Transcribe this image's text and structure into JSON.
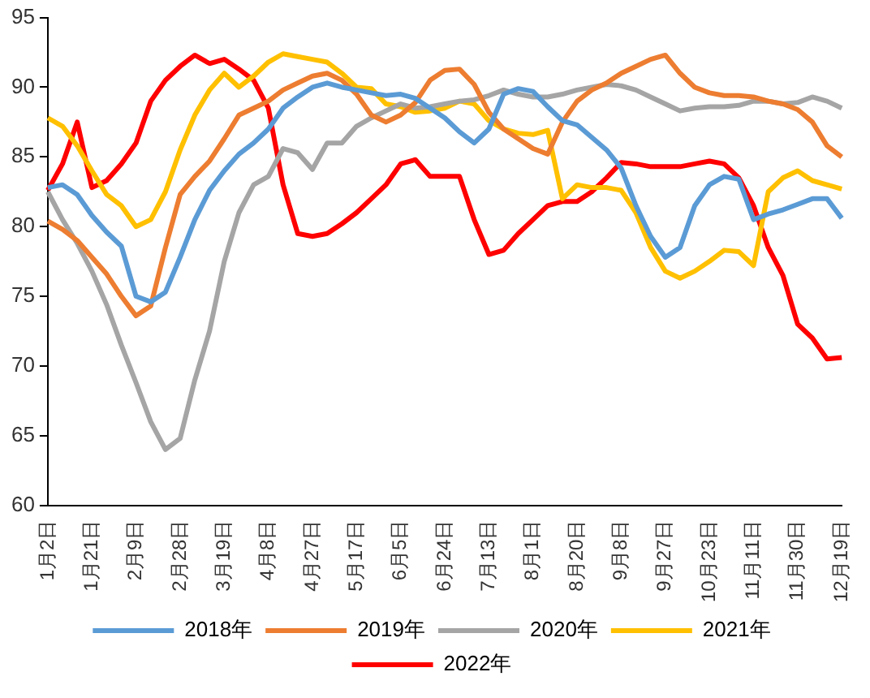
{
  "chart_data": {
    "type": "line",
    "categories": [
      "1月2日",
      null,
      null,
      "1月21日",
      null,
      null,
      "2月9日",
      null,
      null,
      "2月28日",
      null,
      null,
      "3月19日",
      null,
      null,
      "4月8日",
      null,
      null,
      "4月27日",
      null,
      null,
      "5月17日",
      null,
      null,
      "6月5日",
      null,
      null,
      "6月24日",
      null,
      null,
      "7月13日",
      null,
      null,
      "8月1日",
      null,
      null,
      "8月20日",
      null,
      null,
      "9月8日",
      null,
      null,
      "9月27日",
      null,
      null,
      "10月23日",
      null,
      null,
      "11月11日",
      null,
      null,
      "11月30日",
      null,
      null,
      "12月19日"
    ],
    "series": [
      {
        "name": "2018年",
        "color": "#5b9bd5",
        "values": [
          82.8,
          83,
          82.3,
          80.8,
          79.6,
          78.6,
          75,
          74.6,
          75.3,
          77.8,
          80.5,
          82.6,
          84,
          85.2,
          86,
          87,
          88.5,
          89.3,
          90,
          90.3,
          90,
          89.8,
          89.6,
          89.4,
          89.5,
          89.2,
          88.5,
          87.8,
          86.8,
          86,
          87,
          89.5,
          89.9,
          89.7,
          88.6,
          87.6,
          87.3,
          86.4,
          85.5,
          84.2,
          81.5,
          79.3,
          77.8,
          78.5,
          81.5,
          83,
          83.6,
          83.4,
          80.5,
          80.9,
          81.2,
          81.6,
          82,
          82,
          80.6
        ]
      },
      {
        "name": "2019年",
        "color": "#ed7d31",
        "values": [
          80.4,
          79.8,
          79,
          77.8,
          76.6,
          75,
          73.6,
          74.3,
          78.5,
          82.3,
          83.6,
          84.7,
          86.3,
          88,
          88.5,
          89,
          89.8,
          90.3,
          90.8,
          91,
          90.5,
          89.5,
          88,
          87.5,
          88,
          88.9,
          90.5,
          91.2,
          91.3,
          90.2,
          88.2,
          87,
          86.3,
          85.6,
          85.2,
          87.5,
          89,
          89.8,
          90.3,
          91,
          91.5,
          92,
          92.3,
          91,
          90,
          89.6,
          89.4,
          89.4,
          89.3,
          89,
          88.8,
          88.4,
          87.5,
          85.8,
          85
        ]
      },
      {
        "name": "2020年",
        "color": "#a5a5a5",
        "values": [
          82.5,
          80.5,
          78.8,
          76.8,
          74.4,
          71.5,
          68.8,
          66,
          64,
          64.8,
          69,
          72.5,
          77.5,
          81,
          83,
          83.6,
          85.6,
          85.3,
          84.1,
          86,
          86,
          87.2,
          87.8,
          88.3,
          88.8,
          88.5,
          88.6,
          88.8,
          89,
          89.1,
          89.4,
          89.8,
          89.5,
          89.3,
          89.3,
          89.5,
          89.8,
          90,
          90.2,
          90.1,
          89.8,
          89.3,
          88.8,
          88.3,
          88.5,
          88.6,
          88.6,
          88.7,
          89,
          89,
          88.8,
          88.9,
          89.3,
          89,
          88.5
        ]
      },
      {
        "name": "2021年",
        "color": "#ffc000",
        "values": [
          87.8,
          87.2,
          85.8,
          84,
          82.3,
          81.5,
          80,
          80.5,
          82.5,
          85.5,
          88,
          89.8,
          91,
          90,
          90.8,
          91.8,
          92.4,
          92.2,
          92,
          91.8,
          91,
          90,
          89.9,
          88.8,
          88.6,
          88.2,
          88.3,
          88.5,
          89,
          88.8,
          87.6,
          87,
          86.7,
          86.6,
          86.9,
          82,
          83,
          82.8,
          82.8,
          82.6,
          81,
          78.5,
          76.8,
          76.3,
          76.8,
          77.5,
          78.3,
          78.2,
          77.2,
          82.5,
          83.5,
          84,
          83.3,
          83,
          82.7
        ]
      },
      {
        "name": "2022年",
        "color": "#ff0000",
        "values": [
          82.6,
          84.5,
          87.5,
          82.8,
          83.3,
          84.5,
          86,
          89,
          90.5,
          91.5,
          92.3,
          91.7,
          92,
          91.3,
          90.5,
          88.5,
          83,
          79.5,
          79.3,
          79.5,
          80.2,
          81,
          82,
          83,
          84.5,
          84.8,
          83.6,
          83.6,
          83.6,
          80.5,
          78,
          78.3,
          79.5,
          80.5,
          81.5,
          81.8,
          81.8,
          82.5,
          83.5,
          84.6,
          84.5,
          84.3,
          84.3,
          84.3,
          84.5,
          84.7,
          84.5,
          83.5,
          81.5,
          78.5,
          76.5,
          73,
          72,
          70.5,
          70.6
        ]
      }
    ],
    "ylim": [
      60,
      95
    ],
    "yticks": [
      60,
      65,
      70,
      75,
      80,
      85,
      90,
      95
    ],
    "grid": false,
    "legend": "bottom",
    "marker": "none",
    "line_style": "solid"
  }
}
